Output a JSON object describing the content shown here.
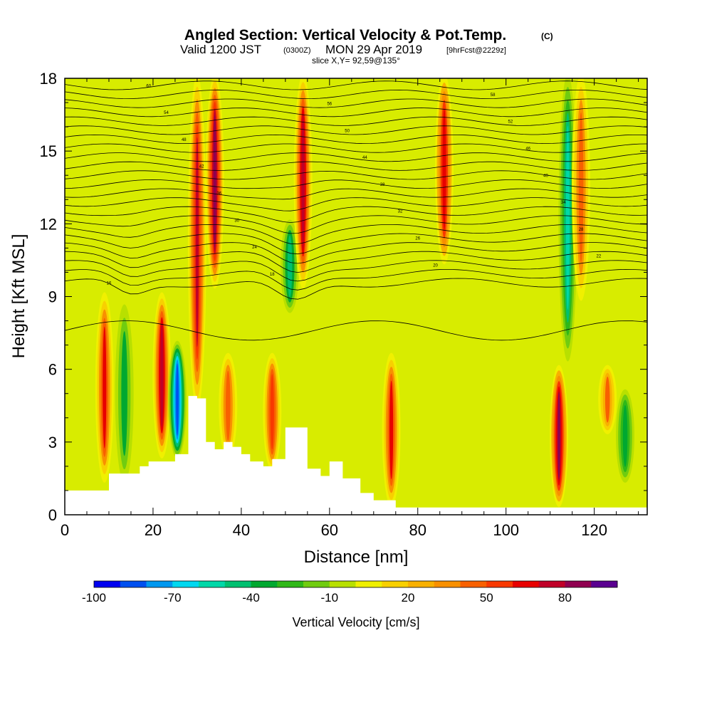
{
  "title": {
    "main": "Angled Section: Vertical Velocity & Pot.Temp.",
    "main_unit": "(C)",
    "valid_prefix": "Valid 1200 JST",
    "valid_utc": "(0300Z)",
    "valid_date": "MON 29 Apr 2019",
    "valid_fcst": "[9hrFcst@2229z]",
    "slice": "slice X,Y= 92,59@135°"
  },
  "chart_data": {
    "type": "heatmap",
    "xlabel": "Distance [nm]",
    "ylabel": "Height [Kft MSL]",
    "xlim": [
      0,
      132
    ],
    "ylim": [
      0,
      18
    ],
    "x_ticks": [
      0,
      20,
      40,
      60,
      80,
      100,
      120
    ],
    "y_ticks": [
      0,
      3,
      6,
      9,
      12,
      15,
      18
    ],
    "grid": false,
    "colorbar": {
      "label": "Vertical Velocity [cm/s]",
      "position": "bottom",
      "tick_labels": [
        "-100",
        "-70",
        "-40",
        "-10",
        "20",
        "50",
        "80"
      ],
      "tick_values": [
        -100,
        -70,
        -40,
        -10,
        20,
        50,
        80
      ],
      "levels": [
        -100,
        -90,
        -80,
        -70,
        -60,
        -50,
        -40,
        -30,
        -20,
        -10,
        0,
        10,
        20,
        30,
        40,
        50,
        60,
        70,
        80,
        90,
        100
      ],
      "colors": [
        "#0000f0",
        "#0050f0",
        "#0098f0",
        "#00d8f0",
        "#00d8a8",
        "#00c070",
        "#00a830",
        "#30b818",
        "#70cc10",
        "#b8e000",
        "#f0f000",
        "#f8d000",
        "#f8b000",
        "#f89000",
        "#f86000",
        "#f83800",
        "#e80000",
        "#c00028",
        "#900050",
        "#5a0090"
      ]
    },
    "vertical_velocity_features": [
      {
        "x": 9,
        "z_bottom": 1.5,
        "z_top": 9.0,
        "w": 60
      },
      {
        "x": 13.5,
        "z_bottom": 1.5,
        "z_top": 8.5,
        "w": -35
      },
      {
        "x": 22,
        "z_bottom": 2.5,
        "z_top": 9.0,
        "w": 75
      },
      {
        "x": 25.5,
        "z_bottom": 2.5,
        "z_top": 7.0,
        "w": -90
      },
      {
        "x": 30,
        "z_bottom": 4.5,
        "z_top": 18.0,
        "w": 70
      },
      {
        "x": 34,
        "z_bottom": 9.5,
        "z_top": 18.0,
        "w": 85
      },
      {
        "x": 37,
        "z_bottom": 2.5,
        "z_top": 6.5,
        "w": 45
      },
      {
        "x": 47,
        "z_bottom": 2.0,
        "z_top": 6.5,
        "w": 55
      },
      {
        "x": 51,
        "z_bottom": 8.5,
        "z_top": 12.0,
        "w": -50
      },
      {
        "x": 54,
        "z_bottom": 9.5,
        "z_top": 18.0,
        "w": 75
      },
      {
        "x": 74,
        "z_bottom": 0.5,
        "z_top": 6.5,
        "w": 60
      },
      {
        "x": 86,
        "z_bottom": 10.5,
        "z_top": 18.0,
        "w": 65
      },
      {
        "x": 112,
        "z_bottom": 0.5,
        "z_top": 6.0,
        "w": 80
      },
      {
        "x": 114,
        "z_bottom": 6.5,
        "z_top": 18.0,
        "w": -55
      },
      {
        "x": 117,
        "z_bottom": 9.0,
        "z_top": 18.0,
        "w": 45
      },
      {
        "x": 123,
        "z_bottom": 3.5,
        "z_top": 6.0,
        "w": 40
      },
      {
        "x": 127,
        "z_bottom": 1.5,
        "z_top": 5.0,
        "w": -40
      }
    ],
    "terrain": {
      "x": [
        0,
        5,
        10,
        14,
        17,
        19,
        21,
        25,
        28,
        30,
        32,
        34,
        36,
        38,
        40,
        42,
        45,
        47,
        50,
        53,
        55,
        58,
        60,
        63,
        67,
        70,
        72,
        75,
        80,
        132
      ],
      "z": [
        1.0,
        1.0,
        1.7,
        1.7,
        2.0,
        2.2,
        2.2,
        2.5,
        4.9,
        4.8,
        3.0,
        2.7,
        3.0,
        2.8,
        2.5,
        2.2,
        2.0,
        2.3,
        3.6,
        3.6,
        1.9,
        1.6,
        2.2,
        1.5,
        0.9,
        0.6,
        0.6,
        0.3,
        0.3,
        0.3
      ]
    },
    "potential_temperature_contours": {
      "levels": [
        14,
        16,
        18,
        20,
        22,
        24,
        26,
        28,
        30,
        32,
        34,
        36,
        38,
        40,
        42,
        44,
        46,
        48,
        50,
        52,
        54,
        56,
        58,
        60
      ],
      "label_text": [
        "16",
        "18",
        "20",
        "22",
        "24",
        "26",
        "28",
        "30",
        "32",
        "34",
        "36",
        "38",
        "40",
        "42",
        "44",
        "46",
        "48",
        "50",
        "52",
        "54",
        "56",
        "58",
        "60"
      ]
    }
  }
}
